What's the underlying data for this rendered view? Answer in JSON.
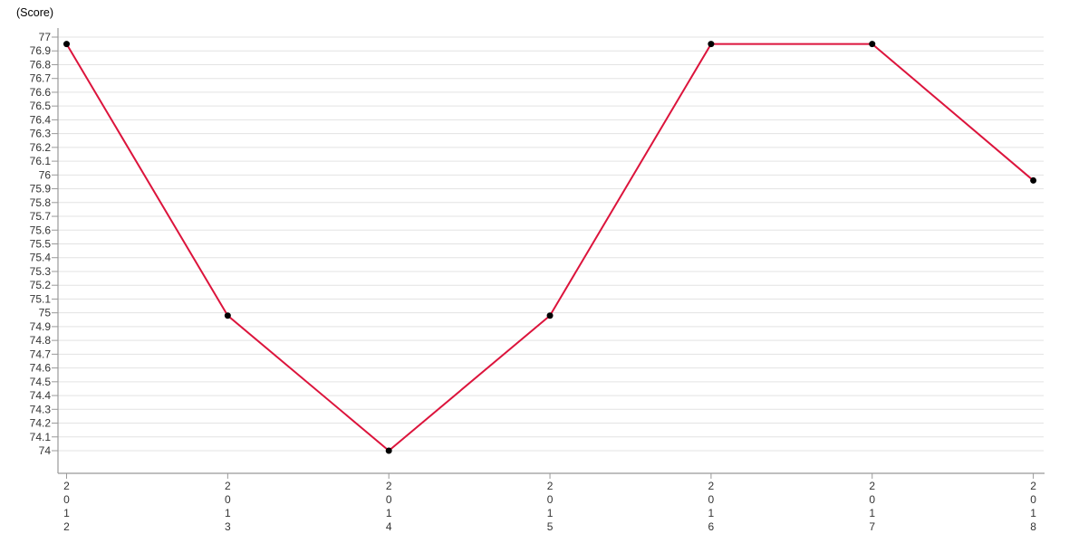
{
  "header": {
    "y_axis_title": "(Score)"
  },
  "chart_data": {
    "type": "line",
    "title": "",
    "ylabel": "(Score)",
    "xlabel": "",
    "categories": [
      "2012",
      "2013",
      "2014",
      "2015",
      "2016",
      "2017",
      "2018"
    ],
    "series": [
      {
        "name": "Score",
        "values": [
          76.95,
          74.98,
          74.0,
          74.98,
          76.95,
          76.95,
          75.96
        ]
      }
    ],
    "ylim": [
      74,
      77
    ],
    "ytick_step": 0.1,
    "ytick_labels": [
      "77",
      "76.9",
      "76.8",
      "76.7",
      "76.6",
      "76.5",
      "76.4",
      "76.3",
      "76.2",
      "76.1",
      "76",
      "75.9",
      "75.8",
      "75.7",
      "75.6",
      "75.5",
      "75.4",
      "75.3",
      "75.2",
      "75.1",
      "75",
      "74.9",
      "74.8",
      "74.7",
      "74.6",
      "74.5",
      "74.4",
      "74.3",
      "74.2",
      "74.1",
      "74"
    ],
    "grid": true,
    "legend_position": "none",
    "x_label_orientation": "vertical-stacked-digits",
    "colors": {
      "line": "#dc143c",
      "marker": "#000000",
      "axis": "#999999",
      "grid": "#e3e3e3",
      "tick_text": "#333333",
      "background": "#ffffff"
    }
  }
}
